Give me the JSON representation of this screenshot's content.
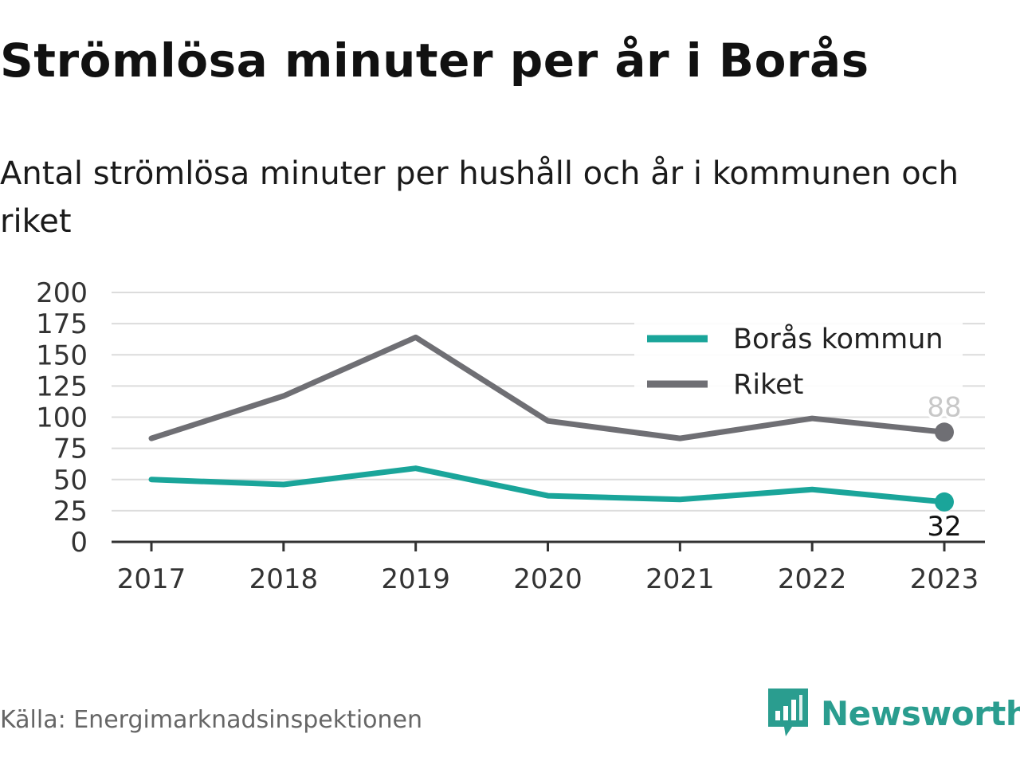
{
  "title": "Strömlösa minuter per år i Borås",
  "subtitle": "Antal strömlösa minuter per hushåll och år i kommunen och riket",
  "source": "Källa: Energimarknadsinspektionen",
  "brand": {
    "name": "Newsworthy",
    "icon": "newsworthy-logo-icon",
    "color": "#2a9d8f"
  },
  "chart_data": {
    "type": "line",
    "x": [
      "2017",
      "2018",
      "2019",
      "2020",
      "2021",
      "2022",
      "2023"
    ],
    "series": [
      {
        "name": "Borås kommun",
        "color": "#1aa59a",
        "values": [
          50,
          46,
          59,
          37,
          34,
          42,
          32
        ],
        "end_label": "32"
      },
      {
        "name": "Riket",
        "color": "#6f6f74",
        "values": [
          83,
          117,
          164,
          97,
          83,
          99,
          88
        ],
        "end_label": "88"
      }
    ],
    "ylim": [
      0,
      200
    ],
    "yticks": [
      "0",
      "25",
      "50",
      "75",
      "100",
      "125",
      "150",
      "175",
      "200"
    ],
    "grid": true,
    "legend": "top-right"
  }
}
